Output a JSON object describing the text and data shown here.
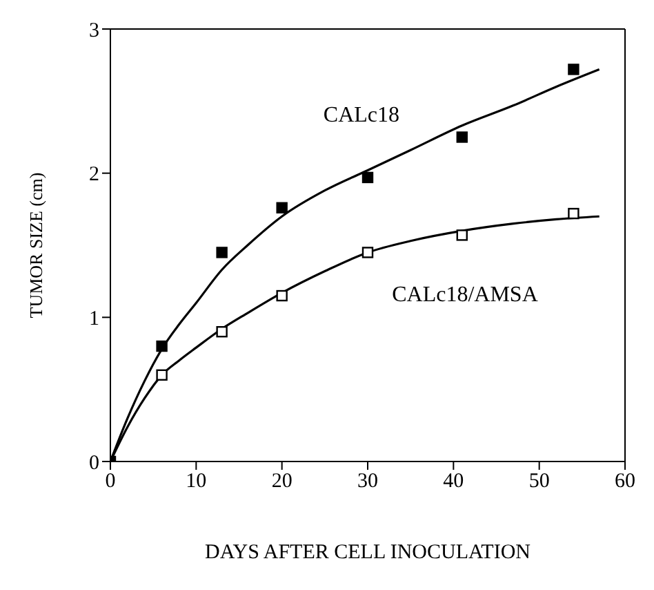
{
  "chart_data": {
    "type": "scatter",
    "xlabel": "DAYS AFTER CELL INOCULATION",
    "ylabel": "TUMOR SIZE (cm)",
    "xlim": [
      0,
      60
    ],
    "xticks": [
      0,
      10,
      20,
      30,
      40,
      50,
      60
    ],
    "ylim": [
      0,
      3
    ],
    "yticks": [
      0,
      1,
      2,
      3
    ],
    "grid": false,
    "legend": false,
    "marker": "square",
    "series": [
      {
        "type": "line",
        "marker": "none",
        "color": "#000000",
        "x": [
          0,
          2,
          4,
          6,
          8,
          10,
          13,
          16,
          20,
          25,
          30,
          35,
          41,
          47,
          52,
          57
        ],
        "values": [
          0,
          0.3,
          0.56,
          0.78,
          0.95,
          1.1,
          1.33,
          1.5,
          1.7,
          1.88,
          2.02,
          2.16,
          2.33,
          2.47,
          2.6,
          2.72
        ]
      },
      {
        "type": "line",
        "marker": "none",
        "color": "#000000",
        "x": [
          0,
          2,
          4,
          6,
          8,
          10,
          13,
          16,
          20,
          25,
          30,
          35,
          41,
          47,
          52,
          57
        ],
        "values": [
          0,
          0.24,
          0.44,
          0.6,
          0.7,
          0.79,
          0.92,
          1.03,
          1.17,
          1.32,
          1.45,
          1.53,
          1.6,
          1.65,
          1.68,
          1.7
        ]
      },
      {
        "name": "CALc18",
        "color": "#000000",
        "x": [
          0,
          6,
          13,
          20,
          30,
          41,
          54
        ],
        "values": [
          0,
          0.8,
          1.45,
          1.76,
          1.97,
          2.25,
          2.72
        ]
      },
      {
        "name": "CALc18/AMSA",
        "color": "#ffffff",
        "x": [
          6,
          13,
          20,
          30,
          41,
          54
        ],
        "values": [
          0.6,
          0.9,
          1.15,
          1.45,
          1.57,
          1.72
        ]
      }
    ]
  }
}
